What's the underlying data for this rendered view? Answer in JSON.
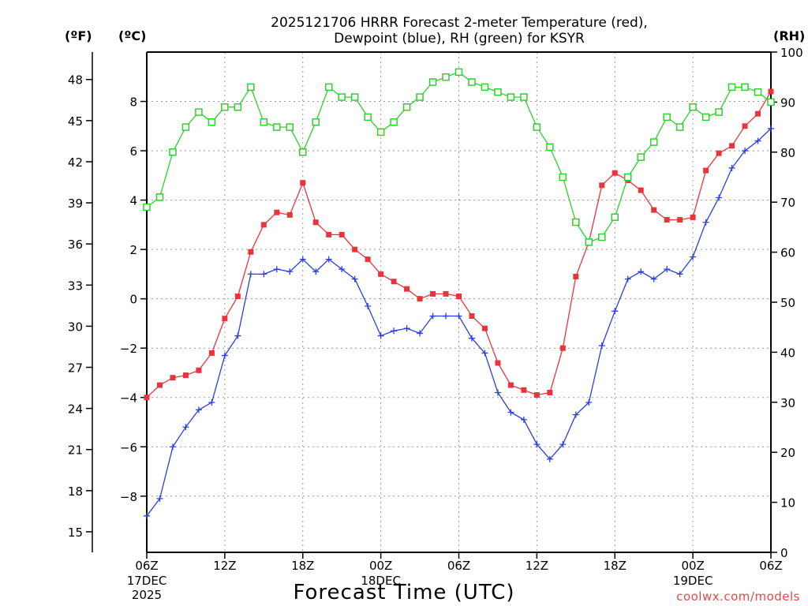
{
  "chart_data": {
    "type": "line",
    "title_lines": [
      "2025121706 HRRR Forecast 2-meter Temperature (red),",
      "Dewpoint (blue), RH (green) for KSYR"
    ],
    "xlabel": "Forecast Time (UTC)",
    "credit": "coolwx.com/models",
    "units": {
      "fahrenheit": "(ºF)",
      "celsius": "(ºC)",
      "rh": "(RH)"
    },
    "x_hours_range": [
      0,
      48
    ],
    "x_ticks": [
      {
        "hour": 0,
        "label": "06Z",
        "sub1": "17DEC",
        "sub2": "2025"
      },
      {
        "hour": 6,
        "label": "12Z"
      },
      {
        "hour": 12,
        "label": "18Z"
      },
      {
        "hour": 18,
        "label": "00Z",
        "sub1": "18DEC"
      },
      {
        "hour": 24,
        "label": "06Z"
      },
      {
        "hour": 30,
        "label": "12Z"
      },
      {
        "hour": 36,
        "label": "18Z"
      },
      {
        "hour": 42,
        "label": "00Z",
        "sub1": "19DEC"
      },
      {
        "hour": 48,
        "label": "06Z"
      }
    ],
    "fahrenheit_axis": {
      "range": [
        13.5,
        50.0
      ],
      "ticks": [
        15,
        18,
        21,
        24,
        27,
        30,
        33,
        36,
        39,
        42,
        45,
        48
      ]
    },
    "celsius_axis": {
      "ticks": [
        -8,
        -6,
        -4,
        -2,
        0,
        2,
        4,
        6,
        8
      ]
    },
    "rh_axis": {
      "range": [
        0,
        100
      ],
      "ticks": [
        0,
        10,
        20,
        30,
        40,
        50,
        60,
        70,
        80,
        90,
        100
      ]
    },
    "series": [
      {
        "name": "2-meter Temperature",
        "unit": "°C",
        "color": "#e8343a",
        "marker": "filled-square",
        "values": [
          -4.0,
          -3.5,
          -3.2,
          -3.1,
          -2.9,
          -2.2,
          -0.8,
          0.1,
          1.9,
          3.0,
          3.5,
          3.4,
          4.7,
          3.1,
          2.6,
          2.6,
          2.0,
          1.6,
          1.0,
          0.7,
          0.4,
          0.0,
          0.2,
          0.2,
          0.1,
          -0.7,
          -1.2,
          -2.6,
          -3.5,
          -3.7,
          -3.9,
          -3.8,
          -2.0,
          0.9,
          2.3,
          4.6,
          5.1,
          4.8,
          4.4,
          3.6,
          3.2,
          3.2,
          3.3,
          5.2,
          5.9,
          6.2,
          7.0,
          7.5,
          8.4
        ]
      },
      {
        "name": "Dewpoint",
        "unit": "°C",
        "color": "#2a3fe0",
        "marker": "plus",
        "values": [
          -8.8,
          -8.1,
          -6.0,
          -5.2,
          -4.5,
          -4.2,
          -2.3,
          -1.5,
          1.0,
          1.0,
          1.2,
          1.1,
          1.6,
          1.1,
          1.6,
          1.2,
          0.8,
          -0.3,
          -1.5,
          -1.3,
          -1.2,
          -1.4,
          -0.7,
          -0.7,
          -0.7,
          -1.6,
          -2.2,
          -3.8,
          -4.6,
          -4.9,
          -5.9,
          -6.5,
          -5.9,
          -4.7,
          -4.2,
          -1.9,
          -0.5,
          0.8,
          1.1,
          0.8,
          1.2,
          1.0,
          1.7,
          3.1,
          4.1,
          5.3,
          6.0,
          6.4,
          6.9
        ]
      },
      {
        "name": "RH",
        "unit": "%",
        "color": "#2cd12c",
        "marker": "open-square",
        "values": [
          69,
          71,
          80,
          85,
          88,
          86,
          89,
          89,
          93,
          86,
          85,
          85,
          80,
          86,
          93,
          91,
          91,
          87,
          84,
          86,
          89,
          91,
          94,
          95,
          96,
          94,
          93,
          92,
          91,
          91,
          85,
          81,
          75,
          66,
          62,
          63,
          67,
          75,
          79,
          82,
          87,
          85,
          89,
          87,
          88,
          93,
          93,
          92,
          90
        ]
      }
    ]
  }
}
